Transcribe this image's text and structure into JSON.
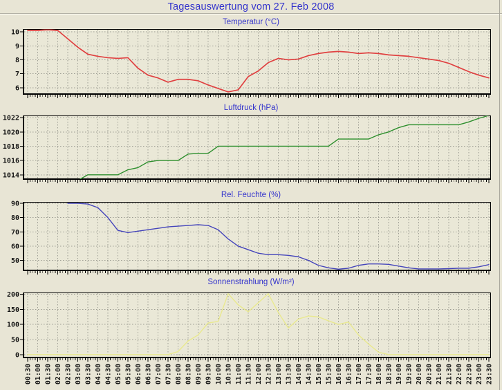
{
  "page": {
    "title": "Tagesauswertung vom 27. Feb 2008"
  },
  "colors": {
    "page_bg": "#e8e5d5",
    "plot_bg": "#eae8d7",
    "grid": "#9c9c92",
    "frame": "#000000",
    "title_blue": "#3434cc",
    "temperature_line": "#e04141",
    "pressure_line": "#2d8f2d",
    "humidity_line": "#4444bb",
    "solar_line": "#e9e98f"
  },
  "x_axis": {
    "labels": [
      "00:30",
      "01:00",
      "01:30",
      "02:00",
      "02:30",
      "03:00",
      "03:30",
      "04:00",
      "04:30",
      "05:00",
      "05:30",
      "06:00",
      "06:30",
      "07:00",
      "07:30",
      "08:00",
      "08:30",
      "09:00",
      "09:30",
      "10:00",
      "10:30",
      "11:00",
      "11:30",
      "12:00",
      "12:30",
      "13:00",
      "13:30",
      "14:00",
      "14:30",
      "15:00",
      "15:30",
      "16:00",
      "16:30",
      "17:00",
      "17:30",
      "18:00",
      "18:30",
      "19:00",
      "19:30",
      "20:00",
      "20:30",
      "21:00",
      "21:30",
      "22:00",
      "22:30",
      "23:00",
      "23:30"
    ]
  },
  "chart_data": {
    "type": "line",
    "categories": [
      "00:30",
      "01:00",
      "01:30",
      "02:00",
      "02:30",
      "03:00",
      "03:30",
      "04:00",
      "04:30",
      "05:00",
      "05:30",
      "06:00",
      "06:30",
      "07:00",
      "07:30",
      "08:00",
      "08:30",
      "09:00",
      "09:30",
      "10:00",
      "10:30",
      "11:00",
      "11:30",
      "12:00",
      "12:30",
      "13:00",
      "13:30",
      "14:00",
      "14:30",
      "15:00",
      "15:30",
      "16:00",
      "16:30",
      "17:00",
      "17:30",
      "18:00",
      "18:30",
      "19:00",
      "19:30",
      "20:00",
      "20:30",
      "21:00",
      "21:30",
      "22:00",
      "22:30",
      "23:00",
      "23:30"
    ],
    "grid": true,
    "legend": "none",
    "panels": [
      {
        "type": "line",
        "title": "Temperatur (°C)",
        "color_key": "temperature_line",
        "color": "#e04141",
        "ylim": [
          5.5,
          10.2
        ],
        "yticks": [
          6,
          7,
          8,
          9,
          10
        ],
        "values": [
          10.1,
          10.1,
          10.15,
          10.1,
          9.5,
          8.9,
          8.4,
          8.25,
          8.15,
          8.1,
          8.15,
          7.4,
          6.9,
          6.7,
          6.4,
          6.6,
          6.6,
          6.5,
          6.2,
          5.95,
          5.7,
          5.85,
          6.8,
          7.2,
          7.8,
          8.1,
          8.0,
          8.05,
          8.3,
          8.45,
          8.55,
          8.6,
          8.55,
          8.45,
          8.5,
          8.45,
          8.35,
          8.3,
          8.25,
          8.15,
          8.05,
          7.95,
          7.75,
          7.45,
          7.15,
          6.9,
          6.7
        ]
      },
      {
        "type": "line",
        "title": "Luftdruck (hPa)",
        "color_key": "pressure_line",
        "color": "#2d8f2d",
        "ylim": [
          1013.3,
          1022.3
        ],
        "yticks": [
          1014,
          1016,
          1018,
          1020,
          1022
        ],
        "values": [
          null,
          null,
          null,
          null,
          null,
          1013.2,
          1014,
          1014,
          1014,
          1014,
          1014.7,
          1015,
          1015.8,
          1016,
          1016,
          1016,
          1016.9,
          1017,
          1017,
          1018,
          1018,
          1018,
          1018,
          1018,
          1018,
          1018,
          1018,
          1018,
          1018,
          1018,
          1018,
          1019,
          1019,
          1019,
          1019,
          1019.6,
          1020,
          1020.6,
          1021,
          1021,
          1021,
          1021,
          1021,
          1021,
          1021.4,
          1021.9,
          1022.3
        ]
      },
      {
        "type": "line",
        "title": "Rel. Feuchte (%)",
        "color_key": "humidity_line",
        "color": "#4444bb",
        "ylim": [
          42.5,
          91
        ],
        "yticks": [
          50,
          60,
          70,
          80,
          90
        ],
        "values": [
          null,
          null,
          null,
          null,
          90,
          90,
          89.5,
          87,
          80,
          71,
          69.5,
          70.5,
          71.5,
          72.5,
          73.5,
          74,
          74.5,
          75,
          74.5,
          71.5,
          65,
          60,
          57.5,
          55,
          54,
          54,
          53.5,
          52.5,
          50,
          46.5,
          44.8,
          43.8,
          44.5,
          46.5,
          47.5,
          47.5,
          47.2,
          46,
          44.8,
          44,
          44,
          44,
          44.2,
          44.5,
          44.5,
          45.5,
          47
        ]
      },
      {
        "type": "line",
        "title": "Sonnenstrahlung (W/m²)",
        "color_key": "solar_line",
        "color": "#e9e98f",
        "ylim": [
          -12,
          206
        ],
        "yticks": [
          0,
          50,
          100,
          150,
          200
        ],
        "values": [
          0,
          0,
          0,
          0,
          0,
          0,
          0,
          0,
          0,
          0,
          0,
          0,
          0,
          0,
          0,
          10,
          45,
          65,
          105,
          110,
          202,
          165,
          142,
          172,
          202,
          140,
          88,
          118,
          128,
          125,
          112,
          100,
          108,
          65,
          35,
          8,
          0,
          0,
          0,
          0,
          0,
          0,
          0,
          0,
          0,
          0,
          0
        ]
      }
    ]
  }
}
